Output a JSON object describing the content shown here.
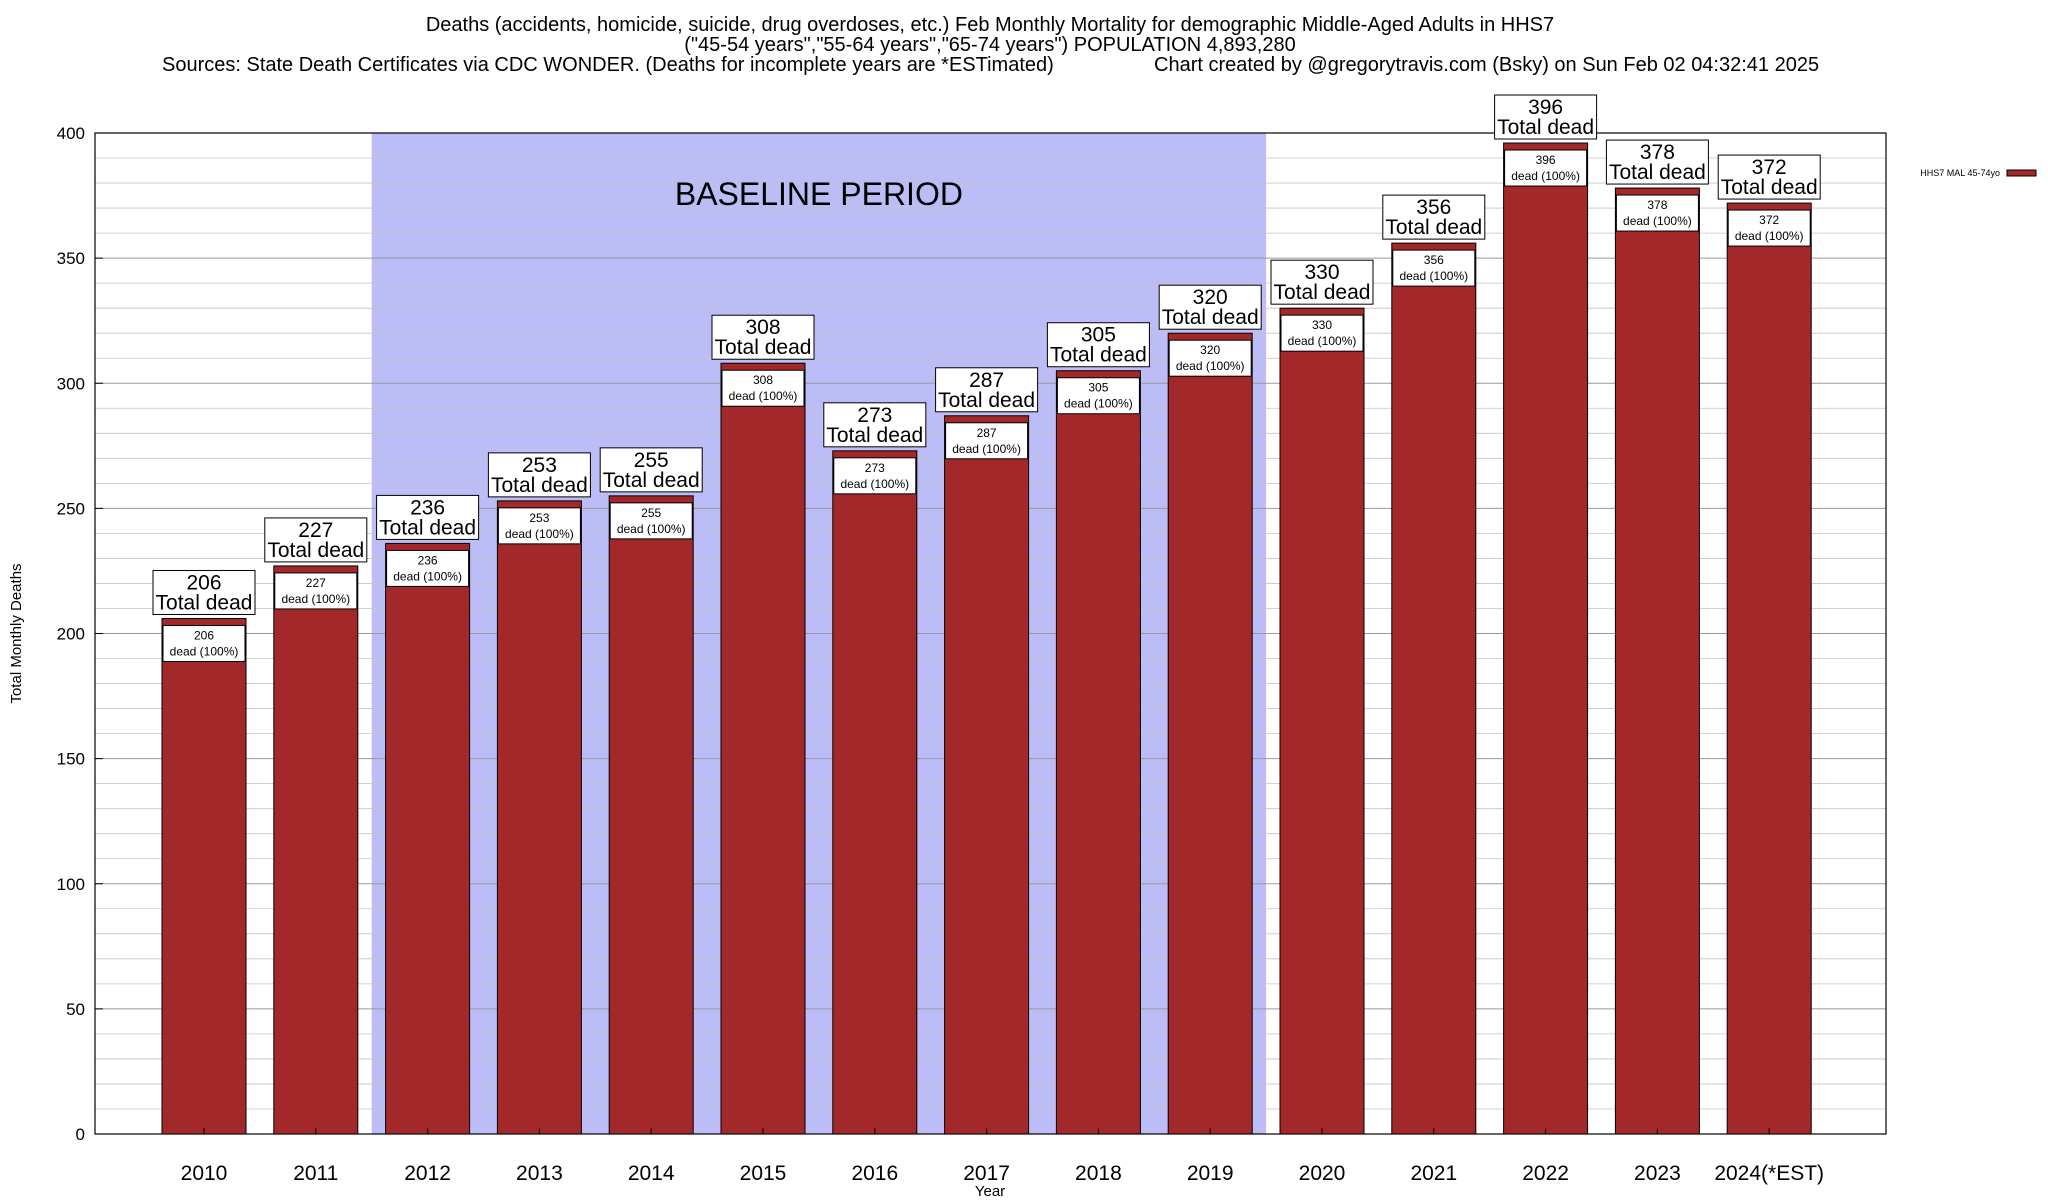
{
  "chart_data": {
    "type": "bar",
    "title": "Deaths (accidents, homicide, suicide, drug overdoses, etc.) Feb Monthly Mortality for demographic Middle-Aged Adults in HHS7",
    "subtitle": "(\"45-54 years\",\"55-64 years\",\"65-74 years\") POPULATION 4,893,280",
    "source_note": "Sources: State Death Certificates via CDC WONDER. (Deaths for incomplete years are *ESTimated)",
    "credit_note": "Chart created by @gregorytravis.com (Bsky) on Sun Feb 02 04:32:41 2025",
    "xlabel": "Year",
    "ylabel": "Total Monthly Deaths",
    "ylim": [
      0,
      400
    ],
    "y_ticks": [
      0,
      50,
      100,
      150,
      200,
      250,
      300,
      350,
      400
    ],
    "categories": [
      "2010",
      "2011",
      "2012",
      "2013",
      "2014",
      "2015",
      "2016",
      "2017",
      "2018",
      "2019",
      "2020",
      "2021",
      "2022",
      "2023",
      "2024(*EST)"
    ],
    "series": [
      {
        "name": "HHS7 MAL 45-74yo",
        "color": "#a3282a",
        "values": [
          206,
          227,
          236,
          253,
          255,
          308,
          273,
          287,
          305,
          320,
          330,
          356,
          396,
          378,
          372
        ]
      }
    ],
    "bar_label_caption": "Total dead",
    "inner_label_caption": "dead (100%)",
    "baseline_period": {
      "label": "BASELINE PERIOD",
      "start": "2012",
      "end": "2019",
      "color": "#bcbcf7"
    },
    "legend_position": "top-right",
    "grid": true
  }
}
